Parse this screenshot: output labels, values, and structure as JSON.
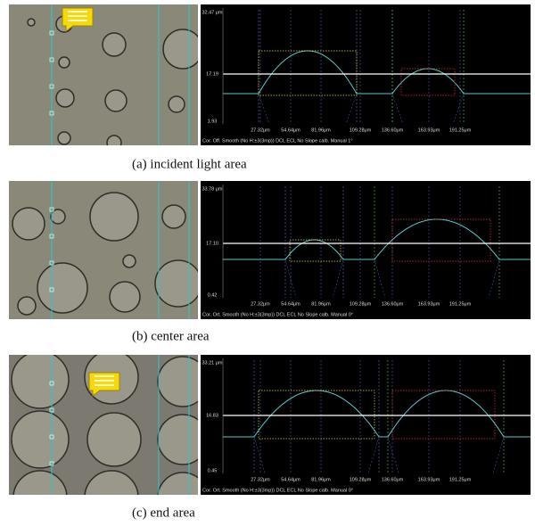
{
  "panels": [
    {
      "caption": "(a)  incident light area",
      "y_labels": [
        "32.47 μm",
        "17.19",
        "1.93"
      ],
      "x_labels": [
        "27.32μm",
        "54.64μm",
        "81.96μm",
        "109.28μm",
        "136.60μm",
        "163.93μm",
        "191.25μm"
      ],
      "footer": "Cor. Off. Smooth (No H:±3(3mp)) DCL ECL No Slope calb. Manual 1°"
    },
    {
      "caption": "(b)  center area",
      "y_labels": [
        "33.78 μm",
        "17.10",
        "0.42"
      ],
      "x_labels": [
        "27.32μm",
        "54.64μm",
        "81.96μm",
        "109.28μm",
        "136.60μm",
        "163.93μm",
        "191.25μm"
      ],
      "footer": "Cor. Ort. Smooth (No H:±3(3mp)) DCL ECL No Slope calb. Manual 0°"
    },
    {
      "caption": "(c)  end area",
      "y_labels": [
        "33.21 μm",
        "16.83",
        "0.45"
      ],
      "x_labels": [
        "27.32μm",
        "54.64μm",
        "81.96μm",
        "109.28μm",
        "136.60μm",
        "163.93μm",
        "191.25μm"
      ],
      "footer": "Cor. Ort. Smooth (No H:±3(3mp)) DCL ECL No Slope calb. Manual 0°"
    }
  ]
}
